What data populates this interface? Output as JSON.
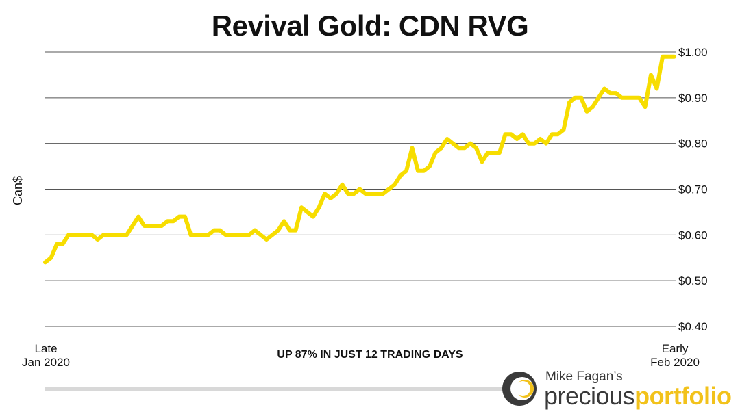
{
  "colors": {
    "line": "#f7dd00",
    "grid": "#555555",
    "bottom_bar": "#d8d8d8",
    "brand_dark": "#3a3a3a",
    "brand_gold": "#f2c21b"
  },
  "brand": {
    "line1": "Mike Fagan’s",
    "word1": "precious",
    "word2": "portfolio",
    "logo_icon": "brand-logo-icon"
  },
  "chart_data": {
    "type": "line",
    "title": "Revival Gold: CDN RVG",
    "ylabel": "Can$",
    "xlabel": "",
    "ylim": [
      0.4,
      1.0
    ],
    "y_ticks": [
      "$0.40",
      "$0.50",
      "$0.60",
      "$0.70",
      "$0.80",
      "$0.90",
      "$1.00"
    ],
    "y_tick_values": [
      0.4,
      0.5,
      0.6,
      0.7,
      0.8,
      0.9,
      1.0
    ],
    "y_axis_side": "right",
    "grid": true,
    "x_tick_left": "Late\nJan 2020",
    "x_tick_right": "Early\nFeb 2020",
    "annotation": "UP 87% IN JUST 12 TRADING DAYS",
    "series": [
      {
        "values": [
          0.54,
          0.55,
          0.58,
          0.58,
          0.6,
          0.6,
          0.6,
          0.6,
          0.6,
          0.59,
          0.6,
          0.6,
          0.6,
          0.6,
          0.6,
          0.62,
          0.64,
          0.62,
          0.62,
          0.62,
          0.62,
          0.63,
          0.63,
          0.64,
          0.64,
          0.6,
          0.6,
          0.6,
          0.6,
          0.61,
          0.61,
          0.6,
          0.6,
          0.6,
          0.6,
          0.6,
          0.61,
          0.6,
          0.59,
          0.6,
          0.61,
          0.63,
          0.61,
          0.61,
          0.66,
          0.65,
          0.64,
          0.66,
          0.69,
          0.68,
          0.69,
          0.71,
          0.69,
          0.69,
          0.7,
          0.69,
          0.69,
          0.69,
          0.69,
          0.7,
          0.71,
          0.73,
          0.74,
          0.79,
          0.74,
          0.74,
          0.75,
          0.78,
          0.79,
          0.81,
          0.8,
          0.79,
          0.79,
          0.8,
          0.79,
          0.76,
          0.78,
          0.78,
          0.78,
          0.82,
          0.82,
          0.81,
          0.82,
          0.8,
          0.8,
          0.81,
          0.8,
          0.82,
          0.82,
          0.83,
          0.89,
          0.9,
          0.9,
          0.87,
          0.88,
          0.9,
          0.92,
          0.91,
          0.91,
          0.9,
          0.9,
          0.9,
          0.9,
          0.88,
          0.95,
          0.92,
          0.99,
          0.99,
          0.99
        ]
      }
    ]
  }
}
